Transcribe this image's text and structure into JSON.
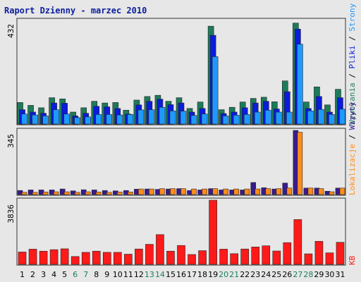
{
  "chart_data": [
    {
      "type": "bar",
      "panel": "top",
      "title": "Raport Dzienny -  marzec 2010",
      "y_max_label": "432",
      "ylim": [
        0,
        432
      ],
      "categories": [
        "1",
        "2",
        "3",
        "4",
        "5",
        "6",
        "7",
        "8",
        "9",
        "10",
        "11",
        "12",
        "13",
        "14",
        "15",
        "16",
        "17",
        "18",
        "19",
        "20",
        "21",
        "22",
        "23",
        "24",
        "25",
        "26",
        "27",
        "28",
        "29",
        "30",
        "31"
      ],
      "series": [
        {
          "name": "Wywołania",
          "color": "#1e7b5a",
          "values": [
            90,
            78,
            68,
            110,
            105,
            50,
            68,
            95,
            88,
            90,
            58,
            100,
            115,
            120,
            95,
            110,
            65,
            92,
            408,
            60,
            70,
            92,
            107,
            112,
            93,
            180,
            421,
            92,
            155,
            80,
            145
          ]
        },
        {
          "name": "Pliki",
          "color": "#0a1cdc",
          "values": [
            60,
            50,
            45,
            88,
            87,
            34,
            45,
            74,
            72,
            65,
            42,
            80,
            95,
            104,
            81,
            88,
            50,
            65,
            370,
            44,
            50,
            68,
            88,
            95,
            63,
            135,
            396,
            65,
            115,
            50,
            110
          ]
        },
        {
          "name": "Strony",
          "color": "#1e9aff",
          "values": [
            42,
            38,
            34,
            60,
            42,
            27,
            30,
            40,
            40,
            38,
            40,
            59,
            60,
            70,
            55,
            54,
            36,
            42,
            281,
            34,
            37,
            40,
            50,
            58,
            50,
            50,
            333,
            55,
            61,
            40,
            62
          ]
        }
      ]
    },
    {
      "type": "bar",
      "panel": "middle",
      "y_max_label": "345",
      "ylim": [
        0,
        345
      ],
      "categories": [
        "1",
        "2",
        "3",
        "4",
        "5",
        "6",
        "7",
        "8",
        "9",
        "10",
        "11",
        "12",
        "13",
        "14",
        "15",
        "16",
        "17",
        "18",
        "19",
        "20",
        "21",
        "22",
        "23",
        "24",
        "25",
        "26",
        "27",
        "28",
        "29",
        "30",
        "31"
      ],
      "series": [
        {
          "name": "Wizyty",
          "color": "#3a1a8e",
          "values": [
            22,
            25,
            25,
            25,
            30,
            20,
            26,
            25,
            22,
            20,
            22,
            29,
            30,
            28,
            30,
            32,
            22,
            25,
            32,
            25,
            25,
            25,
            65,
            37,
            30,
            62,
            345,
            35,
            35,
            18,
            35
          ]
        },
        {
          "name": "Lokalizacje",
          "color": "#ff8c1a",
          "values": [
            12,
            12,
            14,
            15,
            15,
            12,
            15,
            14,
            12,
            14,
            14,
            30,
            30,
            32,
            32,
            32,
            30,
            30,
            32,
            30,
            30,
            30,
            30,
            32,
            32,
            35,
            335,
            35,
            32,
            15,
            35
          ]
        }
      ]
    },
    {
      "type": "bar",
      "panel": "bottom",
      "y_max_label": "3836",
      "ylim": [
        0,
        3836
      ],
      "categories": [
        "1",
        "2",
        "3",
        "4",
        "5",
        "6",
        "7",
        "8",
        "9",
        "10",
        "11",
        "12",
        "13",
        "14",
        "15",
        "16",
        "17",
        "18",
        "19",
        "20",
        "21",
        "22",
        "23",
        "24",
        "25",
        "26",
        "27",
        "28",
        "29",
        "30",
        "31"
      ],
      "series": [
        {
          "name": "KB",
          "color": "#ff1a1a",
          "values": [
            740,
            910,
            790,
            880,
            930,
            470,
            720,
            790,
            720,
            720,
            610,
            920,
            1200,
            1780,
            790,
            1130,
            590,
            820,
            3836,
            910,
            640,
            920,
            1040,
            1110,
            800,
            1300,
            2680,
            630,
            1380,
            690,
            1320
          ]
        }
      ]
    }
  ],
  "x_labels": [
    "1",
    "2",
    "3",
    "4",
    "5",
    "6",
    "7",
    "8",
    "9",
    "10",
    "11",
    "12",
    "13",
    "14",
    "15",
    "16",
    "17",
    "18",
    "19",
    "20",
    "21",
    "22",
    "23",
    "24",
    "25",
    "26",
    "27",
    "28",
    "29",
    "30",
    "31"
  ],
  "weekend_days": [
    "6",
    "7",
    "13",
    "14",
    "20",
    "21",
    "27",
    "28"
  ],
  "colors": {
    "background": "#e7e7e7",
    "title": "#0b1e9e",
    "weekday_label": "#000000",
    "weekend_label": "#1a7f5a",
    "panel_border": "#333333",
    "panel_bg": "#e7e7e7"
  },
  "right_labels": {
    "top": [
      {
        "text": "Wywołania",
        "color": "#1e7b5a"
      },
      {
        "text": " / ",
        "color": "#000000"
      },
      {
        "text": "Pliki",
        "color": "#0a1cdc"
      },
      {
        "text": " / ",
        "color": "#000000"
      },
      {
        "text": "Strony",
        "color": "#1e9aff"
      }
    ],
    "middle": [
      {
        "text": "Lokalizacje",
        "color": "#ff8c1a"
      },
      {
        "text": " / ",
        "color": "#000000"
      },
      {
        "text": "Wizyty",
        "color": "#3a1a8e"
      }
    ],
    "bottom": [
      {
        "text": "KB",
        "color": "#ff1a1a"
      }
    ]
  }
}
